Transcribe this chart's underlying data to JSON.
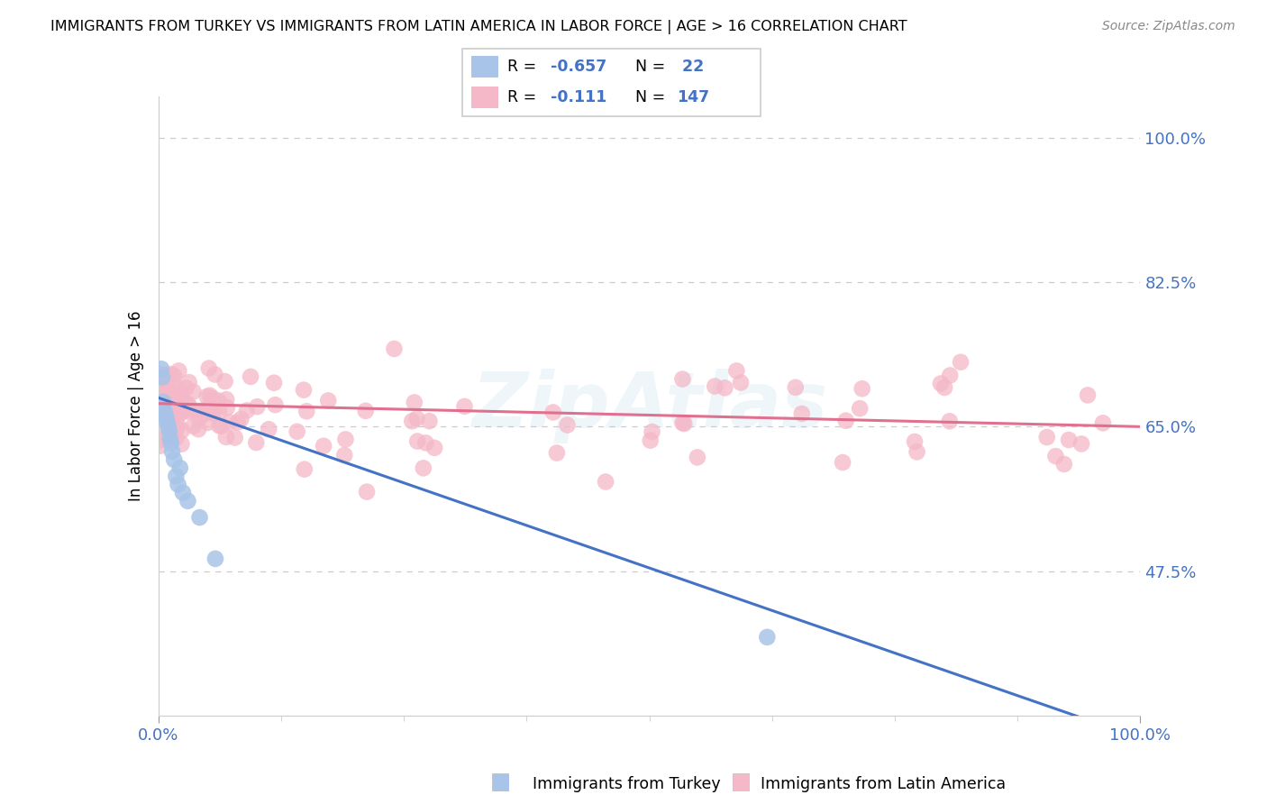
{
  "title": "IMMIGRANTS FROM TURKEY VS IMMIGRANTS FROM LATIN AMERICA IN LABOR FORCE | AGE > 16 CORRELATION CHART",
  "source": "Source: ZipAtlas.com",
  "ylabel": "In Labor Force | Age > 16",
  "color_turkey": "#a8c4e8",
  "color_latin": "#f4b8c8",
  "line_color_turkey": "#4472c4",
  "line_color_latin": "#e07090",
  "legend_blue_r": "R = ",
  "legend_blue_rv": "-0.657",
  "legend_blue_n": "N = ",
  "legend_blue_nv": " 22",
  "legend_pink_r": "R =  ",
  "legend_pink_rv": "-0.111",
  "legend_pink_n": "N = ",
  "legend_pink_nv": "147",
  "ytick_vals": [
    0.475,
    0.65,
    0.825,
    1.0
  ],
  "ytick_labels": [
    "47.5%",
    "65.0%",
    "82.5%",
    "100.0%"
  ],
  "ylim_min": 0.3,
  "ylim_max": 1.05,
  "xlim_min": 0.0,
  "xlim_max": 1.0,
  "turkey_line_x0": 0.0,
  "turkey_line_y0": 0.685,
  "turkey_line_x1": 0.97,
  "turkey_line_y1": 0.285,
  "latin_line_x0": 0.0,
  "latin_line_y0": 0.678,
  "latin_line_x1": 1.0,
  "latin_line_y1": 0.65,
  "watermark_text": "ZipAtlas",
  "watermark_alpha": 0.18
}
